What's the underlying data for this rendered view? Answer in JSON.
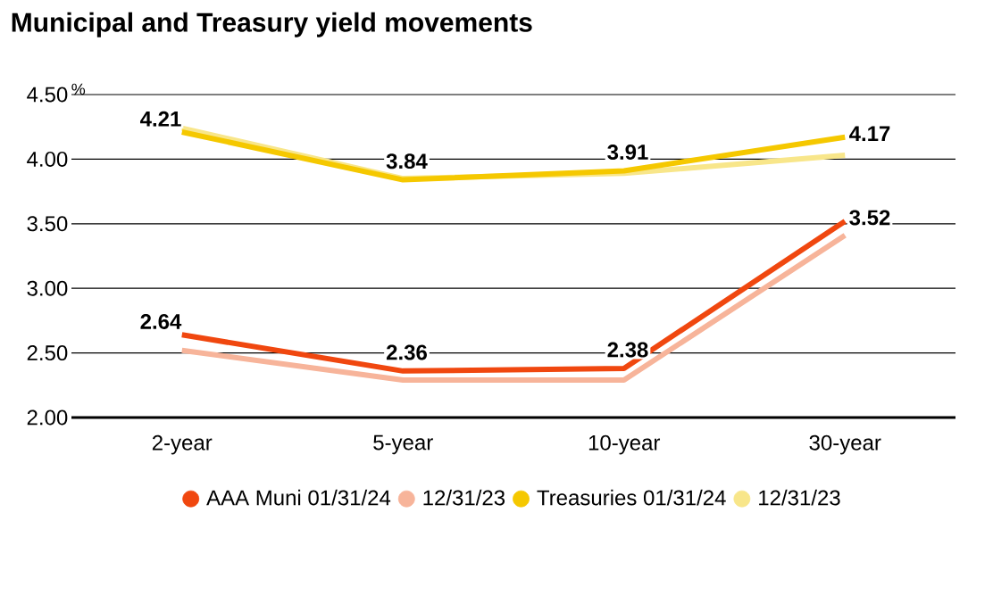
{
  "chart_data": {
    "type": "line",
    "title": "Municipal and Treasury yield movements",
    "ylabel": "%",
    "categories": [
      "2-year",
      "5-year",
      "10-year",
      "30-year"
    ],
    "series": [
      {
        "name": "AAA Muni 01/31/24",
        "color": "#f0470f",
        "values": [
          2.64,
          2.36,
          2.38,
          3.52
        ],
        "value_labels": [
          "2.64",
          "2.36",
          "2.38",
          "3.52"
        ]
      },
      {
        "name": "12/31/23",
        "color": "#f7b49a",
        "values": [
          2.52,
          2.29,
          2.29,
          3.41
        ]
      },
      {
        "name": "Treasuries 01/31/24",
        "color": "#f5c800",
        "values": [
          4.21,
          3.84,
          3.91,
          4.17
        ],
        "value_labels": [
          "4.21",
          "3.84",
          "3.91",
          "4.17"
        ]
      },
      {
        "name": "12/31/23",
        "color": "#f8e68a",
        "values": [
          4.24,
          3.85,
          3.89,
          4.03
        ]
      }
    ],
    "ylim": [
      2.0,
      4.5
    ],
    "yticks": [
      {
        "value": 2.0,
        "label": "2.00"
      },
      {
        "value": 2.5,
        "label": "2.50"
      },
      {
        "value": 3.0,
        "label": "3.00"
      },
      {
        "value": 3.5,
        "label": "3.50"
      },
      {
        "value": 4.0,
        "label": "4.00"
      },
      {
        "value": 4.5,
        "label": "4.50"
      }
    ],
    "grid": "y",
    "legend": "bottom",
    "marker": "none",
    "line_style": "solid"
  }
}
